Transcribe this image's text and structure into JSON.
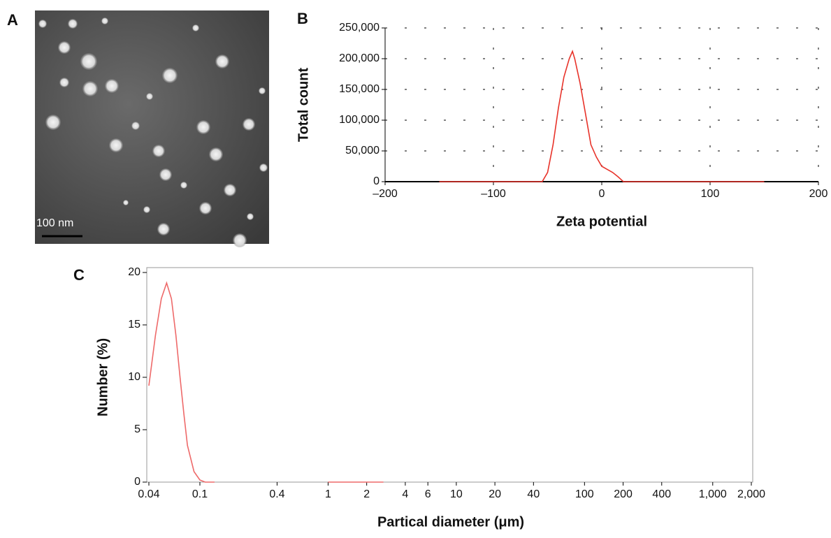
{
  "image": {
    "label": "A",
    "scale_bar": "100 nm"
  },
  "chart_data": [
    {
      "type": "line",
      "label": "B",
      "xlabel": "Zeta potential",
      "ylabel": "Total count",
      "x": [
        -150,
        -55,
        -50,
        -45,
        -40,
        -35,
        -30,
        -27,
        -25,
        -20,
        -15,
        -10,
        -5,
        0,
        5,
        10,
        15,
        20,
        150
      ],
      "values": [
        0,
        0,
        15000,
        60000,
        120000,
        170000,
        200000,
        212000,
        200000,
        160000,
        110000,
        60000,
        40000,
        25000,
        20000,
        15000,
        8000,
        0,
        0
      ],
      "color": "#e8332a",
      "xlim": [
        -200,
        200
      ],
      "ylim": [
        0,
        250000
      ],
      "xticks": [
        {
          "value": -200,
          "label": "–200"
        },
        {
          "value": -100,
          "label": "–100"
        },
        0,
        100,
        200
      ],
      "yticks": [
        0,
        {
          "value": 50000,
          "label": "50,000"
        },
        {
          "value": 100000,
          "label": "100,000"
        },
        {
          "value": 150000,
          "label": "150,000"
        },
        {
          "value": 200000,
          "label": "200,000"
        },
        {
          "value": 250000,
          "label": "250,000"
        }
      ],
      "grid": true,
      "frame": false,
      "xscale": "linear"
    },
    {
      "type": "line",
      "label": "C",
      "xlabel": "Partical diameter (μm)",
      "ylabel": "Number (%)",
      "x": [
        0.04,
        0.045,
        0.05,
        0.055,
        0.06,
        0.065,
        0.07,
        0.075,
        0.08,
        0.09,
        0.1,
        0.11,
        0.13,
        0.5,
        1,
        2.7
      ],
      "values": [
        9.2,
        14,
        17.5,
        19,
        17.5,
        14,
        10,
        6.5,
        3.5,
        1,
        0.2,
        0,
        0,
        null,
        0,
        0
      ],
      "color": "#ee6a6a",
      "xlim": [
        0.04,
        2000
      ],
      "ylim": [
        0,
        20
      ],
      "xticks": [
        0.04,
        0.1,
        0.4,
        1,
        2,
        4,
        6,
        10,
        20,
        40,
        100,
        200,
        400,
        {
          "value": 1000,
          "label": "1,000"
        },
        {
          "value": 2000,
          "label": "2,000"
        }
      ],
      "yticks": [
        0,
        5,
        10,
        15,
        20
      ],
      "grid": false,
      "frame": true,
      "xscale": "log"
    }
  ]
}
